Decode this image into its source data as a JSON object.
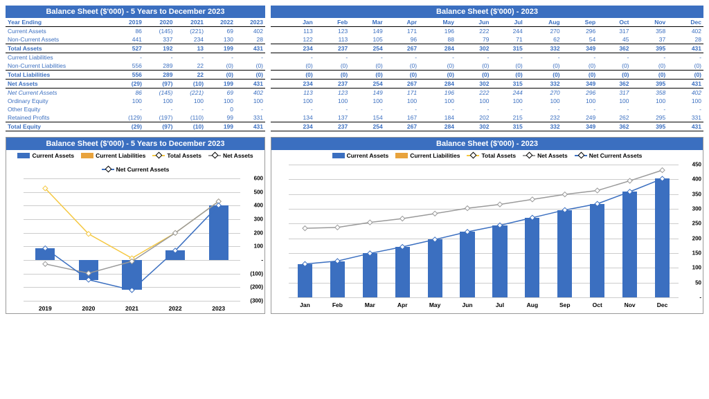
{
  "colors": {
    "header_blue": "#3b6fc0",
    "bar_fill": "#3b6fc0",
    "orange": "#e8a33d",
    "yellow": "#f5c842",
    "gray": "#9a9a9a",
    "line_blue": "#3b6fc0",
    "grid": "#cccccc"
  },
  "table_left": {
    "title": "Balance Sheet ($'000) - 5 Years to December 2023",
    "col_header": "Year Ending",
    "years": [
      "2019",
      "2020",
      "2021",
      "2022",
      "2023"
    ],
    "rows": [
      {
        "label": "Current Assets",
        "vals": [
          "86",
          "(145)",
          "(221)",
          "69",
          "402"
        ],
        "blue": true
      },
      {
        "label": "Non-Current Assets",
        "vals": [
          "441",
          "337",
          "234",
          "130",
          "28"
        ],
        "blue": true,
        "bb": true
      },
      {
        "label": "Total Assets",
        "vals": [
          "527",
          "192",
          "13",
          "199",
          "431"
        ],
        "blue": true,
        "bold": true,
        "bb": true
      },
      {
        "label": "Current Liabilities",
        "vals": [
          "-",
          "-",
          "-",
          "-",
          "-"
        ],
        "blue": true
      },
      {
        "label": "Non-Current Liabilities",
        "vals": [
          "556",
          "289",
          "22",
          "(0)",
          "(0)"
        ],
        "blue": true,
        "bb": true
      },
      {
        "label": "Total Liabilities",
        "vals": [
          "556",
          "289",
          "22",
          "(0)",
          "(0)"
        ],
        "blue": true,
        "bold": true,
        "bb": true
      },
      {
        "label": "Net Assets",
        "vals": [
          "(29)",
          "(97)",
          "(10)",
          "199",
          "431"
        ],
        "blue": true,
        "bold": true,
        "bb": true,
        "bt": true
      },
      {
        "label": "Net Current Assets",
        "vals": [
          "86",
          "(145)",
          "(221)",
          "69",
          "402"
        ],
        "blue": true,
        "italic": true
      },
      {
        "label": "Ordinary Equity",
        "vals": [
          "100",
          "100",
          "100",
          "100",
          "100"
        ],
        "blue": true
      },
      {
        "label": "Other Equity",
        "vals": [
          "-",
          "-",
          "-",
          "0",
          "-"
        ],
        "blue": true
      },
      {
        "label": "Retained Profits",
        "vals": [
          "(129)",
          "(197)",
          "(110)",
          "99",
          "331"
        ],
        "blue": true,
        "bb": true
      },
      {
        "label": "Total Equity",
        "vals": [
          "(29)",
          "(97)",
          "(10)",
          "199",
          "431"
        ],
        "blue": true,
        "bold": true,
        "bb": true
      }
    ]
  },
  "table_right": {
    "title": "Balance Sheet ($'000) - 2023",
    "months": [
      "Jan",
      "Feb",
      "Mar",
      "Apr",
      "May",
      "Jun",
      "Jul",
      "Aug",
      "Sep",
      "Oct",
      "Nov",
      "Dec"
    ],
    "rows": [
      {
        "vals": [
          "113",
          "123",
          "149",
          "171",
          "196",
          "222",
          "244",
          "270",
          "296",
          "317",
          "358",
          "402"
        ],
        "blue": true
      },
      {
        "vals": [
          "122",
          "113",
          "105",
          "96",
          "88",
          "79",
          "71",
          "62",
          "54",
          "45",
          "37",
          "28"
        ],
        "blue": true,
        "bb": true
      },
      {
        "vals": [
          "234",
          "237",
          "254",
          "267",
          "284",
          "302",
          "315",
          "332",
          "349",
          "362",
          "395",
          "431"
        ],
        "blue": true,
        "bold": true,
        "bb": true
      },
      {
        "vals": [
          "-",
          "-",
          "-",
          "-",
          "-",
          "-",
          "-",
          "-",
          "-",
          "-",
          "-",
          "-"
        ],
        "blue": true
      },
      {
        "vals": [
          "(0)",
          "(0)",
          "(0)",
          "(0)",
          "(0)",
          "(0)",
          "(0)",
          "(0)",
          "(0)",
          "(0)",
          "(0)",
          "(0)"
        ],
        "blue": true,
        "bb": true
      },
      {
        "vals": [
          "(0)",
          "(0)",
          "(0)",
          "(0)",
          "(0)",
          "(0)",
          "(0)",
          "(0)",
          "(0)",
          "(0)",
          "(0)",
          "(0)"
        ],
        "blue": true,
        "bold": true,
        "bb": true
      },
      {
        "vals": [
          "234",
          "237",
          "254",
          "267",
          "284",
          "302",
          "315",
          "332",
          "349",
          "362",
          "395",
          "431"
        ],
        "blue": true,
        "bold": true,
        "bb": true,
        "bt": true
      },
      {
        "vals": [
          "113",
          "123",
          "149",
          "171",
          "196",
          "222",
          "244",
          "270",
          "296",
          "317",
          "358",
          "402"
        ],
        "blue": true,
        "italic": true
      },
      {
        "vals": [
          "100",
          "100",
          "100",
          "100",
          "100",
          "100",
          "100",
          "100",
          "100",
          "100",
          "100",
          "100"
        ],
        "blue": true
      },
      {
        "vals": [
          "-",
          "-",
          "-",
          "-",
          "-",
          "-",
          "-",
          "-",
          "-",
          "-",
          "-",
          "-"
        ],
        "blue": true
      },
      {
        "vals": [
          "134",
          "137",
          "154",
          "167",
          "184",
          "202",
          "215",
          "232",
          "249",
          "262",
          "295",
          "331"
        ],
        "blue": true,
        "bb": true
      },
      {
        "vals": [
          "234",
          "237",
          "254",
          "267",
          "284",
          "302",
          "315",
          "332",
          "349",
          "362",
          "395",
          "431"
        ],
        "blue": true,
        "bold": true,
        "bb": true
      }
    ]
  },
  "chart_left": {
    "title": "Balance Sheet ($'000) - 5 Years to December 2023",
    "legend": [
      {
        "label": "Current Assets",
        "type": "bar",
        "color": "#3b6fc0"
      },
      {
        "label": "Current Liabilities",
        "type": "bar",
        "color": "#e8a33d"
      },
      {
        "label": "Total Assets",
        "type": "line",
        "color": "#f5c842"
      },
      {
        "label": "Net Assets",
        "type": "line",
        "color": "#9a9a9a"
      },
      {
        "label": "Net Current Assets",
        "type": "line",
        "color": "#3b6fc0"
      }
    ],
    "ymin": -300,
    "ymax": 600,
    "ystep": 100,
    "yticks": [
      "600",
      "500",
      "400",
      "300",
      "200",
      "100",
      "-",
      "(100)",
      "(200)",
      "(300)"
    ],
    "categories": [
      "2019",
      "2020",
      "2021",
      "2022",
      "2023"
    ],
    "series": {
      "current_assets": [
        86,
        -145,
        -221,
        69,
        402
      ],
      "total_assets": [
        527,
        192,
        13,
        199,
        431
      ],
      "net_assets": [
        -29,
        -97,
        -10,
        199,
        431
      ],
      "net_current_assets": [
        86,
        -145,
        -221,
        69,
        402
      ]
    }
  },
  "chart_right": {
    "title": "Balance Sheet ($'000) - 2023",
    "legend": [
      {
        "label": "Current Assets",
        "type": "bar",
        "color": "#3b6fc0"
      },
      {
        "label": "Current Liabilities",
        "type": "bar",
        "color": "#e8a33d"
      },
      {
        "label": "Total Assets",
        "type": "line",
        "color": "#f5c842"
      },
      {
        "label": "Net Assets",
        "type": "line",
        "color": "#9a9a9a"
      },
      {
        "label": "Net Current Assets",
        "type": "line",
        "color": "#3b6fc0"
      }
    ],
    "ymin": 0,
    "ymax": 450,
    "ystep": 50,
    "yticks": [
      "450",
      "400",
      "350",
      "300",
      "250",
      "200",
      "150",
      "100",
      "50",
      "-"
    ],
    "categories": [
      "Jan",
      "Feb",
      "Mar",
      "Apr",
      "May",
      "Jun",
      "Jul",
      "Aug",
      "Sep",
      "Oct",
      "Nov",
      "Dec"
    ],
    "series": {
      "current_assets": [
        113,
        123,
        149,
        171,
        196,
        222,
        244,
        270,
        296,
        317,
        358,
        402
      ],
      "net_assets": [
        234,
        237,
        254,
        267,
        284,
        302,
        315,
        332,
        349,
        362,
        395,
        431
      ],
      "net_current_assets": [
        113,
        123,
        149,
        171,
        196,
        222,
        244,
        270,
        296,
        317,
        358,
        402
      ]
    }
  }
}
